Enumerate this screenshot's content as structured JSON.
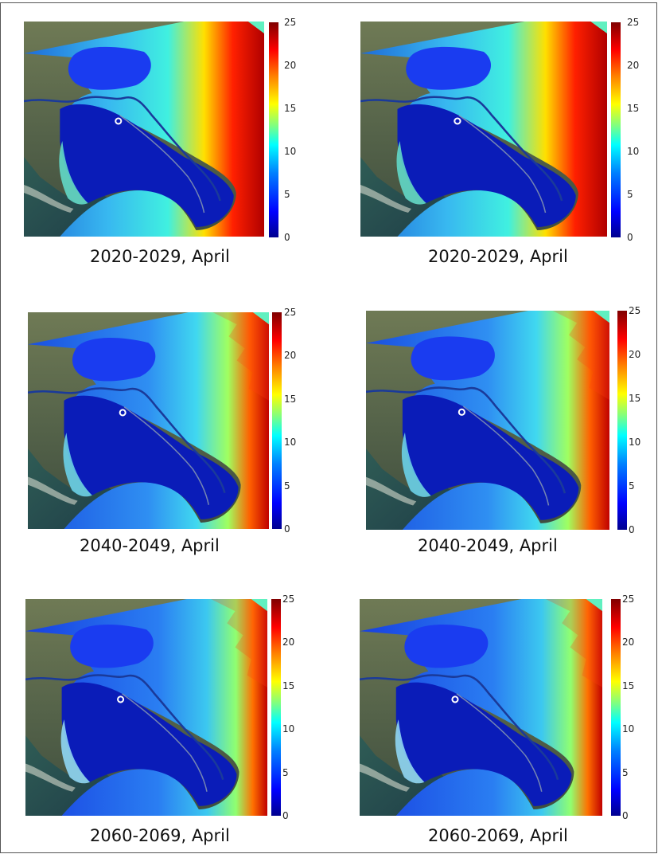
{
  "panels": [
    {
      "caption": "2020-2029, April",
      "stage": 0
    },
    {
      "caption": "2020-2029, April",
      "stage": 0
    },
    {
      "caption": "2040-2049, April",
      "stage": 1
    },
    {
      "caption": "2040-2049, April",
      "stage": 1
    },
    {
      "caption": "2060-2069, April",
      "stage": 2
    },
    {
      "caption": "2060-2069, April",
      "stage": 2
    }
  ],
  "colorbar": {
    "ticks": [
      "0",
      "5",
      "10",
      "15",
      "20",
      "25"
    ],
    "min": 0,
    "max": 25,
    "colormap": "jet"
  },
  "marker": {
    "type": "open-circle",
    "color": "#ffffff"
  }
}
